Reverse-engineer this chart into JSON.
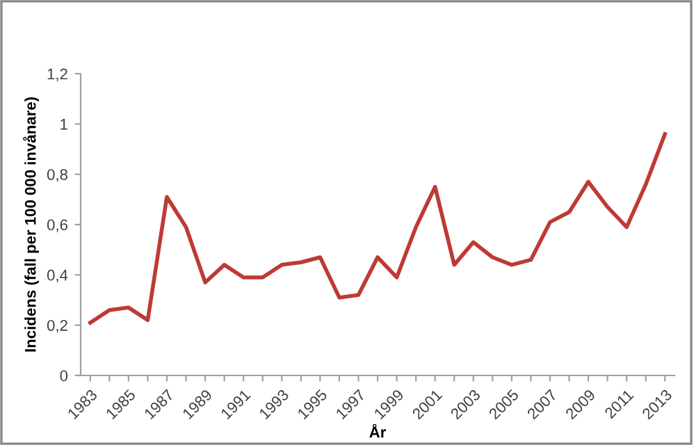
{
  "chart_data": {
    "type": "line",
    "xlabel": "År",
    "ylabel": "Incidens (fall per 100 000 invånare)",
    "categories": [
      "1983",
      null,
      "1985",
      null,
      "1987",
      null,
      "1989",
      null,
      "1991",
      null,
      "1993",
      null,
      "1995",
      null,
      "1997",
      null,
      "1999",
      null,
      "2001",
      null,
      "2003",
      null,
      "2005",
      null,
      "2007",
      null,
      "2009",
      null,
      "2011",
      null,
      "2013"
    ],
    "series": [
      {
        "color": "#be3a34",
        "values": [
          0.21,
          0.26,
          0.27,
          0.22,
          0.71,
          0.59,
          0.37,
          0.44,
          0.39,
          0.39,
          0.44,
          0.45,
          0.47,
          0.31,
          0.32,
          0.47,
          0.39,
          0.59,
          0.75,
          0.44,
          0.53,
          0.47,
          0.44,
          0.46,
          0.61,
          0.65,
          0.77,
          0.67,
          0.59,
          0.76,
          0.96
        ]
      }
    ],
    "ylim": [
      0,
      1.2
    ],
    "yticks": [
      0,
      {
        "value": 0.2,
        "label": "0,2"
      },
      {
        "value": 0.4,
        "label": "0,4"
      },
      {
        "value": 0.6,
        "label": "0,6"
      },
      {
        "value": 0.8,
        "label": "0,8"
      },
      1,
      {
        "value": 1.2,
        "label": "1,2"
      }
    ],
    "marker": "none",
    "line_style": "solid"
  }
}
